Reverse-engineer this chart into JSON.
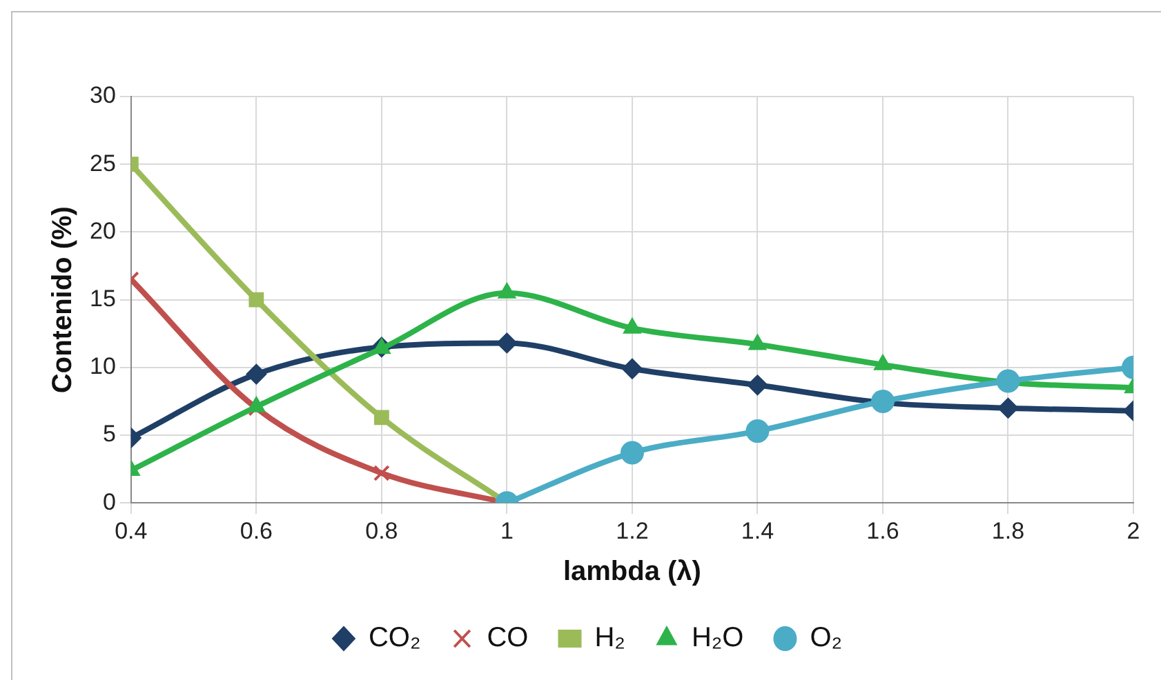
{
  "chart_data": {
    "type": "line",
    "xlabel": "lambda (λ)",
    "ylabel": "Contenido (%)",
    "x": [
      0.4,
      0.6,
      0.8,
      1,
      1.2,
      1.4,
      1.6,
      1.8,
      2
    ],
    "xlim": [
      0.4,
      2
    ],
    "xticks": [
      0.4,
      0.6,
      0.8,
      1,
      1.2,
      1.4,
      1.6,
      1.8,
      2
    ],
    "ylim": [
      0,
      30
    ],
    "yticks": [
      0,
      5,
      10,
      15,
      20,
      25,
      30
    ],
    "grid": true,
    "legend": "bottom",
    "series": [
      {
        "name": "CO₂",
        "color": "#1f3f66",
        "marker": "diamond",
        "values": [
          4.8,
          9.5,
          11.5,
          11.8,
          9.9,
          8.7,
          7.4,
          7.0,
          6.8
        ]
      },
      {
        "name": "CO",
        "color": "#c0504d",
        "marker": "cross",
        "values": [
          16.5,
          7.0,
          2.2,
          0,
          null,
          null,
          null,
          null,
          null
        ]
      },
      {
        "name": "H₂",
        "color": "#9bbb59",
        "marker": "square",
        "values": [
          25,
          15,
          6.3,
          0,
          null,
          null,
          null,
          null,
          null
        ]
      },
      {
        "name": "H₂O",
        "color": "#2db34a",
        "marker": "triangle",
        "values": [
          2.4,
          7.1,
          11.4,
          15.5,
          12.9,
          11.7,
          10.2,
          8.9,
          8.5
        ]
      },
      {
        "name": "O₂",
        "color": "#4bacc6",
        "marker": "circle",
        "values": [
          null,
          null,
          null,
          0,
          3.7,
          5.3,
          7.5,
          9.0,
          10
        ]
      }
    ]
  }
}
